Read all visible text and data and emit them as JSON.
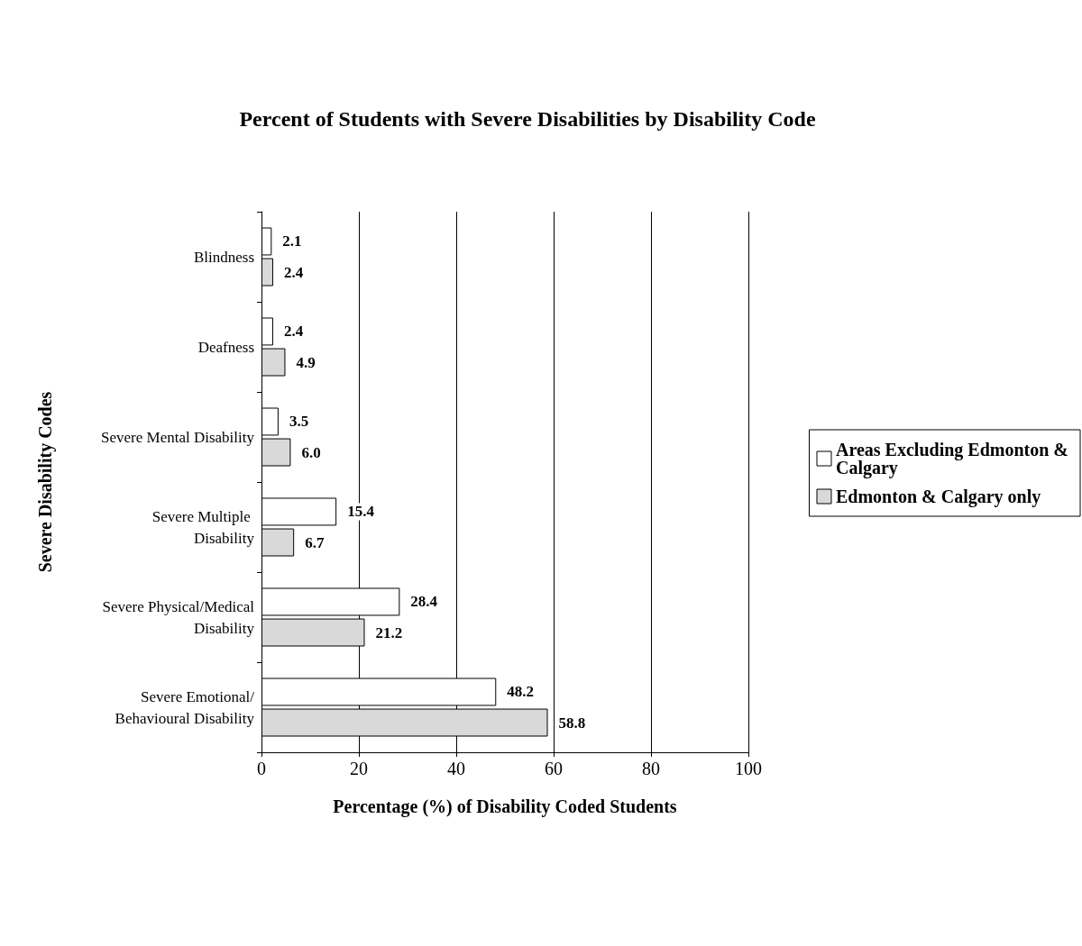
{
  "chart_data": {
    "type": "bar",
    "orientation": "horizontal",
    "title": "Percent of Students with Severe Disabilities by Disability Code",
    "xlabel": "Percentage (%) of Disability Coded Students",
    "ylabel": "Severe Disability Codes",
    "categories": [
      "Blindness",
      "Deafness",
      "Severe Mental Disability",
      "Severe Multiple Disability",
      "Severe Physical/Medical Disability",
      "Severe Emotional/Behavioural Disability"
    ],
    "series": [
      {
        "name": "Areas Excluding Edmonton & Calgary",
        "color": "#ffffff",
        "values": [
          2.1,
          2.4,
          3.5,
          15.4,
          28.4,
          48.2
        ],
        "value_labels": [
          "2.1",
          "2.4",
          "3.5",
          "15.4",
          "28.4",
          "48.2"
        ]
      },
      {
        "name": "Edmonton & Calgary only",
        "color": "#d9d9d9",
        "values": [
          2.4,
          4.9,
          6.0,
          6.7,
          21.2,
          58.8
        ],
        "value_labels": [
          "2.4",
          "4.9",
          "6.0",
          "6.7",
          "21.2",
          "58.8"
        ]
      }
    ],
    "xlim": [
      0,
      100
    ],
    "xticks": [
      0,
      20,
      40,
      60,
      80,
      100
    ],
    "grid": "x",
    "legend": "right"
  }
}
